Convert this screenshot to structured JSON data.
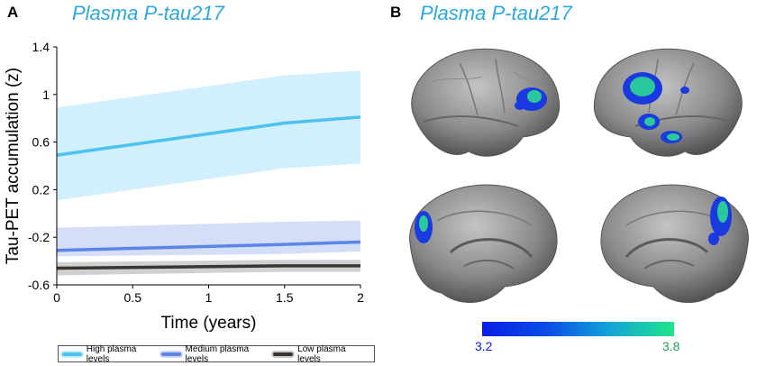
{
  "panel_a": {
    "letter": "A",
    "title": "Plasma P-tau217"
  },
  "panel_b": {
    "letter": "B",
    "title": "Plasma P-tau217"
  },
  "chart_data": {
    "type": "line",
    "xlabel": "Time (years)",
    "ylabel": "Tau-PET accumulation (z)",
    "xlim": [
      0,
      2
    ],
    "ylim": [
      -0.6,
      1.4
    ],
    "xticks": [
      "0",
      "0.5",
      "1",
      "1.5",
      "2"
    ],
    "yticks": [
      "-0.6",
      "-0.2",
      "0.2",
      "0.6",
      "1",
      "1.4"
    ],
    "grid": false,
    "legend_position": "bottom",
    "series": [
      {
        "name": "High plasma levels",
        "color": "#4cc3ee",
        "band_color": "#c9ecfb",
        "x": [
          0,
          1.5,
          2
        ],
        "y": [
          0.49,
          0.76,
          0.81
        ],
        "lower": [
          0.11,
          0.38,
          0.42
        ],
        "upper": [
          0.89,
          1.16,
          1.2
        ]
      },
      {
        "name": "Medium plasma levels",
        "color": "#5b86e8",
        "band_color": "#cdd8f6",
        "x": [
          0,
          1.5,
          2
        ],
        "y": [
          -0.31,
          -0.26,
          -0.24
        ],
        "lower": [
          -0.36,
          -0.34,
          -0.32
        ],
        "upper": [
          -0.12,
          -0.07,
          -0.06
        ]
      },
      {
        "name": "Low plasma levels",
        "color": "#3a3530",
        "band_color": "#c8c8c8",
        "x": [
          0,
          1.5,
          2
        ],
        "y": [
          -0.46,
          -0.44,
          -0.44
        ],
        "lower": [
          -0.52,
          -0.49,
          -0.49
        ],
        "upper": [
          -0.41,
          -0.39,
          -0.39
        ]
      }
    ]
  },
  "colorbar": {
    "min_label": "3.2",
    "max_label": "3.8"
  }
}
